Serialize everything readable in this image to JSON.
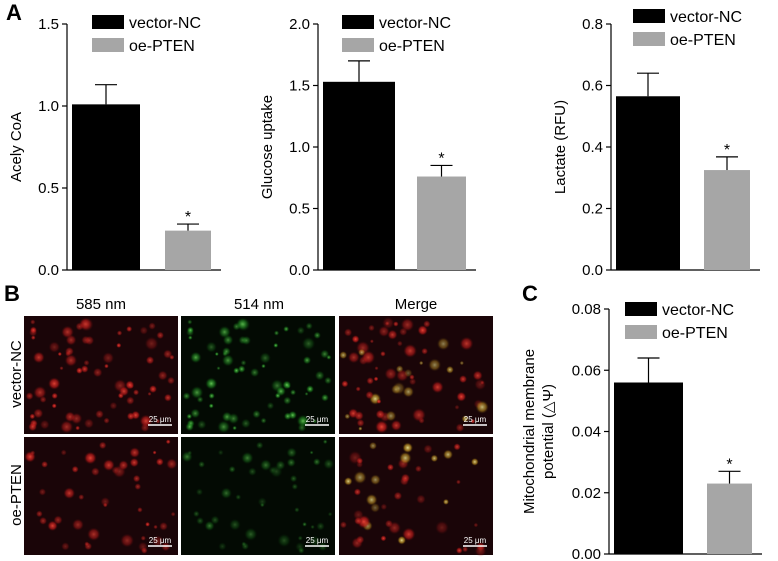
{
  "panels": {
    "A": "A",
    "B": "B",
    "C": "C"
  },
  "colors": {
    "vector_nc": "#000000",
    "oe_pten": "#a6a6a6",
    "micro_bg": "#1a0508"
  },
  "legend": {
    "vector_nc": "vector-NC",
    "oe_pten": "oe-PTEN"
  },
  "micrographs": {
    "columns": [
      "585 nm",
      "514 nm",
      "Merge"
    ],
    "rows": [
      "vector-NC",
      "oe-PTEN"
    ],
    "scale_bar": "25 μm"
  },
  "chart_data": [
    {
      "type": "bar",
      "panel": "A",
      "categories": [
        "vector-NC",
        "oe-PTEN"
      ],
      "values": [
        1.01,
        0.24
      ],
      "errors": [
        0.12,
        0.04
      ],
      "significance": [
        "",
        "*"
      ],
      "ylabel": "Acely CoA",
      "ylim": [
        0,
        1.5
      ],
      "yticks": [
        0.0,
        0.5,
        1.0,
        1.5
      ],
      "ytick_labels": [
        "0.0",
        "0.5",
        "1.0",
        "1.5"
      ],
      "legend_position": "top-right"
    },
    {
      "type": "bar",
      "panel": "A",
      "categories": [
        "vector-NC",
        "oe-PTEN"
      ],
      "values": [
        1.53,
        0.76
      ],
      "errors": [
        0.17,
        0.09
      ],
      "significance": [
        "",
        "*"
      ],
      "ylabel": "Glucose uptake",
      "ylim": [
        0,
        2.0
      ],
      "yticks": [
        0.0,
        0.5,
        1.0,
        1.5,
        2.0
      ],
      "ytick_labels": [
        "0.0",
        "0.5",
        "1.0",
        "1.5",
        "2.0"
      ],
      "legend_position": "top-right"
    },
    {
      "type": "bar",
      "panel": "A",
      "categories": [
        "vector-NC",
        "oe-PTEN"
      ],
      "values": [
        0.565,
        0.325
      ],
      "errors": [
        0.075,
        0.043
      ],
      "significance": [
        "",
        "*"
      ],
      "ylabel": "Lactate (RFU)",
      "ylim": [
        0,
        0.8
      ],
      "yticks": [
        0.0,
        0.2,
        0.4,
        0.6,
        0.8
      ],
      "ytick_labels": [
        "0.0",
        "0.2",
        "0.4",
        "0.6",
        "0.8"
      ],
      "legend_position": "top-right"
    },
    {
      "type": "bar",
      "panel": "C",
      "categories": [
        "vector-NC",
        "oe-PTEN"
      ],
      "values": [
        0.056,
        0.023
      ],
      "errors": [
        0.008,
        0.004
      ],
      "significance": [
        "",
        "*"
      ],
      "ylabel_lines": [
        "Mitochondrial membrane",
        "potential (△Ψ)"
      ],
      "ylim": [
        0,
        0.08
      ],
      "yticks": [
        0.0,
        0.02,
        0.04,
        0.06,
        0.08
      ],
      "ytick_labels": [
        "0.00",
        "0.02",
        "0.04",
        "0.06",
        "0.08"
      ],
      "legend_position": "top-right"
    }
  ]
}
